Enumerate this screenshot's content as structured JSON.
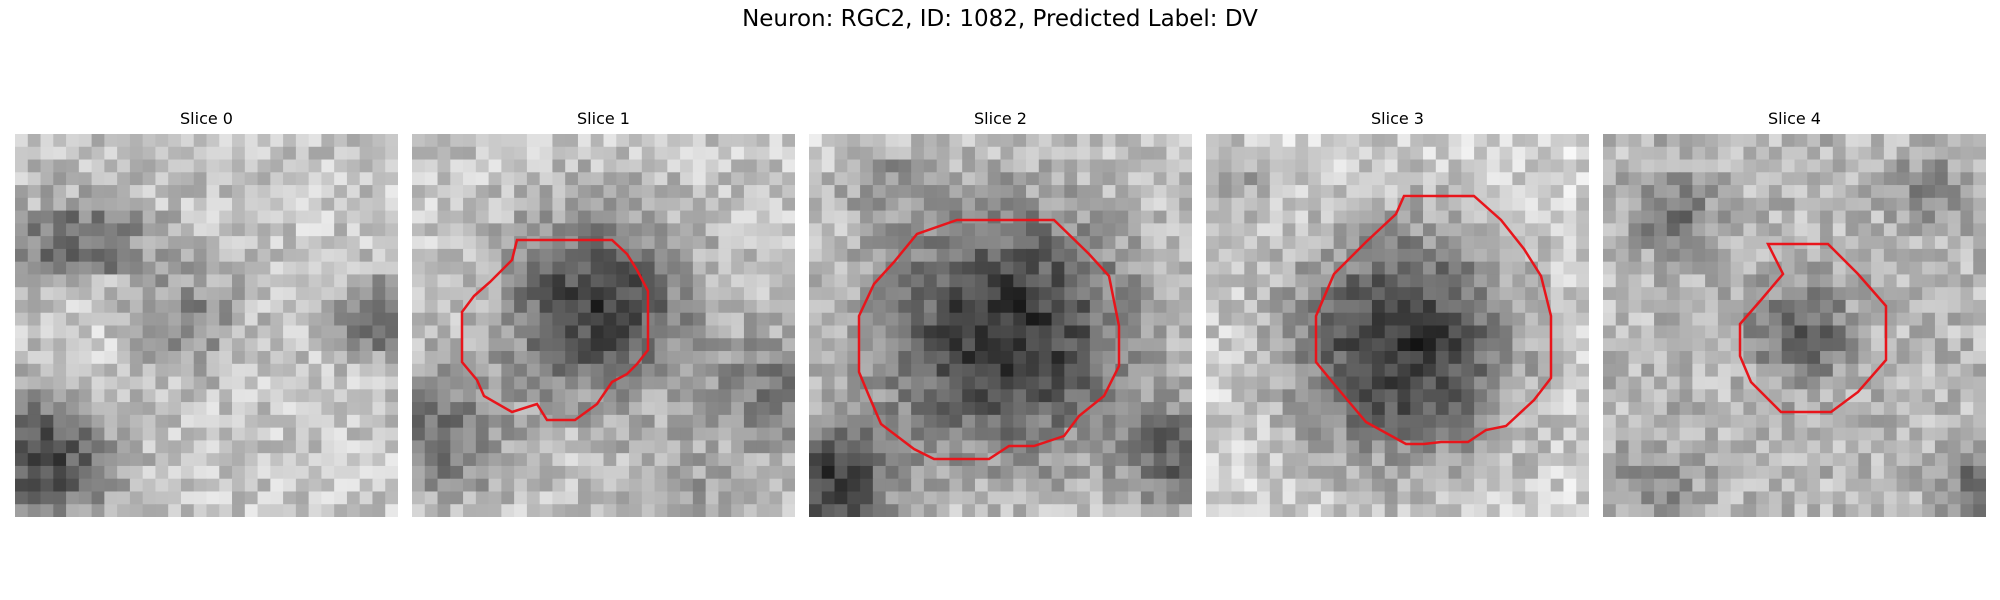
{
  "figure": {
    "title": "Neuron: RGC2, ID: 1082, Predicted Label: DV"
  },
  "panels": [
    {
      "title": "Slice 0",
      "has_outline": false
    },
    {
      "title": "Slice 1",
      "has_outline": true
    },
    {
      "title": "Slice 2",
      "has_outline": true
    },
    {
      "title": "Slice 3",
      "has_outline": true
    },
    {
      "title": "Slice 4",
      "has_outline": true
    }
  ],
  "colors": {
    "outline": "#e8151b",
    "colormap": "gray"
  }
}
